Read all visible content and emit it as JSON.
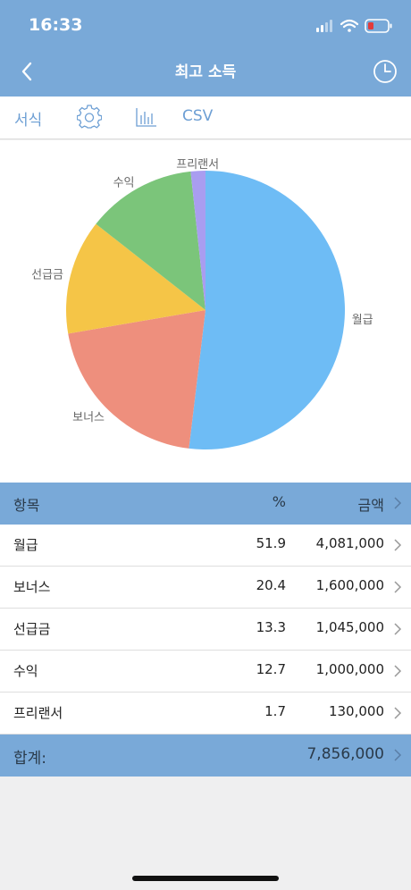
{
  "status": {
    "time": "16:33"
  },
  "header": {
    "title": "최고 소득"
  },
  "toolbar": {
    "format_label": "서식",
    "csv_label": "CSV"
  },
  "chart_data": {
    "type": "pie",
    "title": "",
    "slices": [
      {
        "label": "월급",
        "value": 51.9,
        "color": "#6ebcf5"
      },
      {
        "label": "보너스",
        "value": 20.4,
        "color": "#ee8f7d"
      },
      {
        "label": "선급금",
        "value": 13.3,
        "color": "#f5c547"
      },
      {
        "label": "수익",
        "value": 12.7,
        "color": "#7bc57a"
      },
      {
        "label": "프리랜서",
        "value": 1.7,
        "color": "#a99df0"
      }
    ]
  },
  "table": {
    "headers": {
      "item": "항목",
      "percent": "%",
      "amount": "금액"
    },
    "rows": [
      {
        "name": "월급",
        "percent": "51.9",
        "amount": "4,081,000"
      },
      {
        "name": "보너스",
        "percent": "20.4",
        "amount": "1,600,000"
      },
      {
        "name": "선급금",
        "percent": "13.3",
        "amount": "1,045,000"
      },
      {
        "name": "수익",
        "percent": "12.7",
        "amount": "1,000,000"
      },
      {
        "name": "프리랜서",
        "percent": "1.7",
        "amount": "130,000"
      }
    ],
    "total_label": "합계:",
    "total_amount": "7,856,000"
  }
}
